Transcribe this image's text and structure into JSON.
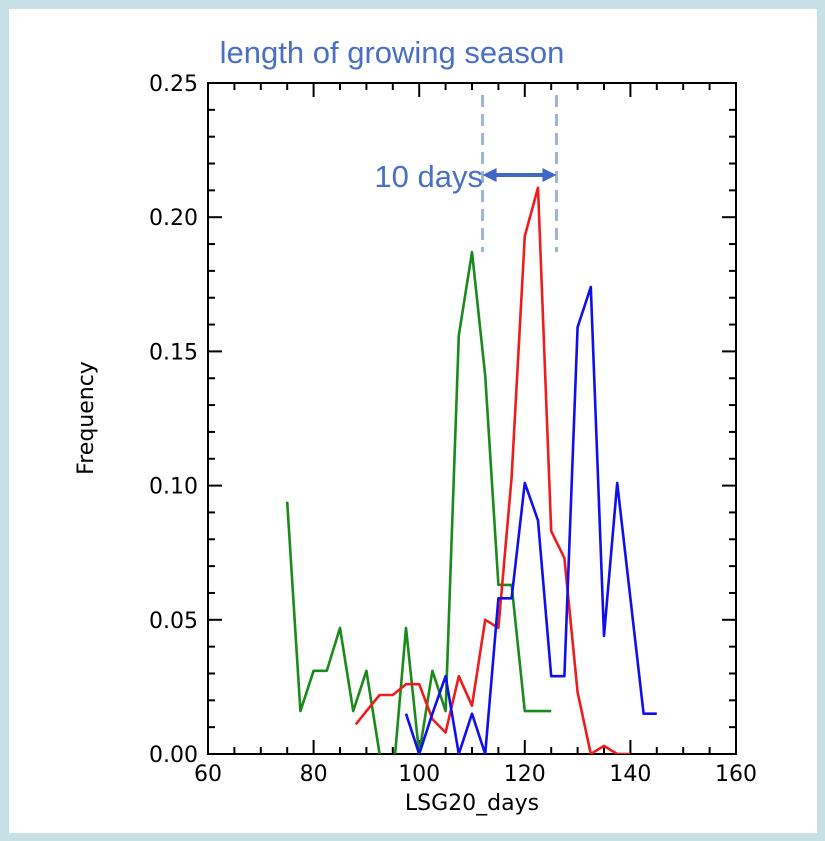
{
  "chart_data": {
    "type": "line",
    "title": "length of growing season",
    "xlabel": "LSG20_days",
    "ylabel": "Frequency",
    "xlim": [
      60,
      160
    ],
    "ylim": [
      0,
      0.25
    ],
    "x_ticks": [
      "60",
      "80",
      "100",
      "120",
      "140",
      "160"
    ],
    "y_ticks": [
      "0.00",
      "0.05",
      "0.10",
      "0.15",
      "0.20",
      "0.25"
    ],
    "grid": false,
    "series": [
      {
        "color": "#1a8a1a",
        "x": [
          75,
          77.5,
          80,
          82.5,
          85,
          87.5,
          90,
          92.5,
          95,
          97.5,
          100,
          102.5,
          105,
          107.5,
          110,
          112.5,
          115,
          117.5,
          120,
          122.5,
          125
        ],
        "y": [
          0.094,
          0.016,
          0.031,
          0.031,
          0.047,
          0.016,
          0.031,
          0.0,
          -0.01,
          0.047,
          0.0,
          0.031,
          0.016,
          0.156,
          0.187,
          0.141,
          0.063,
          0.063,
          0.016,
          0.016,
          0.016
        ]
      },
      {
        "color": "#ee1c1c",
        "x": [
          88,
          90,
          92.5,
          95,
          97.5,
          100,
          102.5,
          105,
          107.5,
          110,
          112.5,
          115,
          117.5,
          120,
          122.5,
          125,
          127.5,
          130,
          132.5,
          135,
          137.5,
          140
        ],
        "y": [
          0.011,
          0.016,
          0.022,
          0.022,
          0.026,
          0.026,
          0.013,
          0.008,
          0.029,
          0.018,
          0.05,
          0.047,
          0.103,
          0.193,
          0.211,
          0.083,
          0.073,
          0.023,
          0.0,
          0.003,
          0.0,
          0.0
        ]
      },
      {
        "color": "#1010ee",
        "x": [
          97.5,
          100,
          102.5,
          105,
          107.5,
          110,
          112.5,
          115,
          117.5,
          120,
          122.5,
          125,
          127.5,
          130,
          132.5,
          135,
          137.5,
          140,
          142.5,
          145
        ],
        "y": [
          0.015,
          0.0,
          0.015,
          0.029,
          0.0,
          0.015,
          0.0,
          0.058,
          0.058,
          0.101,
          0.087,
          0.029,
          0.029,
          0.159,
          0.174,
          0.044,
          0.101,
          0.058,
          0.015,
          0.015
        ]
      }
    ],
    "annotations": {
      "interval_text": "10 days",
      "marker_x": [
        112,
        126
      ],
      "marker_color": "#9db4dc",
      "arrow_color": "#3e68c2"
    }
  }
}
